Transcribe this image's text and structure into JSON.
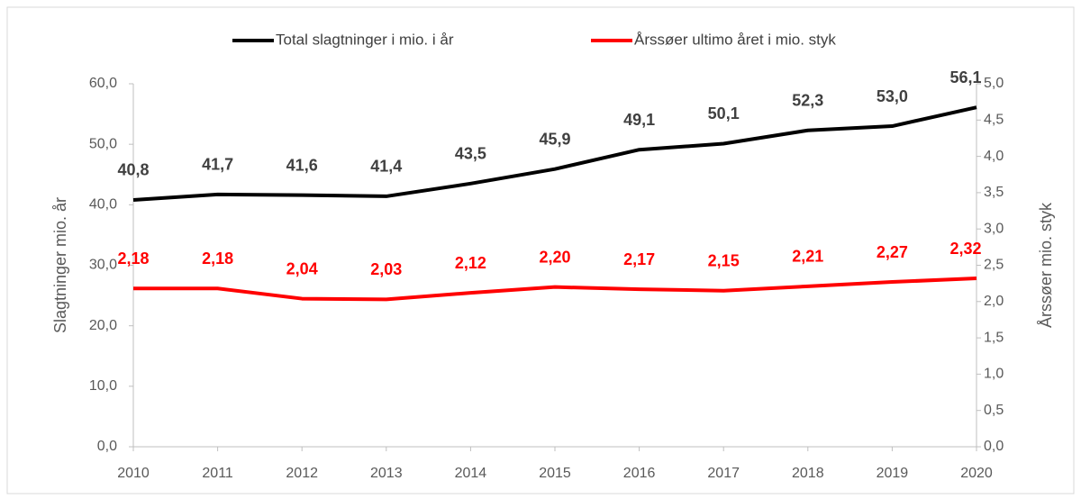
{
  "chart_data": {
    "type": "line",
    "categories": [
      "2010",
      "2011",
      "2012",
      "2013",
      "2014",
      "2015",
      "2016",
      "2017",
      "2018",
      "2019",
      "2020"
    ],
    "series": [
      {
        "name": "Total slagtninger i mio. i år",
        "color": "#000000",
        "values": [
          40.8,
          41.7,
          41.6,
          41.4,
          43.5,
          45.9,
          49.1,
          50.1,
          52.3,
          53.0,
          56.1
        ],
        "value_labels": [
          "40,8",
          "41,7",
          "41,6",
          "41,4",
          "43,5",
          "45,9",
          "49,1",
          "50,1",
          "52,3",
          "53,0",
          "56,1"
        ]
      },
      {
        "name": "Årssøer ultimo året i mio. styk",
        "color": "#ff0000",
        "axis": "y2",
        "values": [
          2.18,
          2.18,
          2.04,
          2.03,
          2.12,
          2.2,
          2.17,
          2.15,
          2.21,
          2.27,
          2.32
        ],
        "value_labels": [
          "2,18",
          "2,18",
          "2,04",
          "2,03",
          "2,12",
          "2,20",
          "2,17",
          "2,15",
          "2,21",
          "2,27",
          "2,32"
        ]
      }
    ],
    "ylabel": "Slagtninger mio. år",
    "y2label": "Årssøer mio. styk",
    "ylim": [
      0,
      60
    ],
    "yticks": [
      {
        "value": 0,
        "label": "0,0"
      },
      {
        "value": 10,
        "label": "10,0"
      },
      {
        "value": 20,
        "label": "20,0"
      },
      {
        "value": 30,
        "label": "30,0"
      },
      {
        "value": 40,
        "label": "40,0"
      },
      {
        "value": 50,
        "label": "50,0"
      },
      {
        "value": 60,
        "label": "60,0"
      }
    ],
    "y2lim": [
      0,
      5
    ],
    "y2ticks": [
      {
        "value": 0,
        "label": "0,0"
      },
      {
        "value": 0.5,
        "label": "0,5"
      },
      {
        "value": 1,
        "label": "1,0"
      },
      {
        "value": 1.5,
        "label": "1,5"
      },
      {
        "value": 2,
        "label": "2,0"
      },
      {
        "value": 2.5,
        "label": "2,5"
      },
      {
        "value": 3,
        "label": "3,0"
      },
      {
        "value": 3.5,
        "label": "3,5"
      },
      {
        "value": 4,
        "label": "4,0"
      },
      {
        "value": 4.5,
        "label": "4,5"
      },
      {
        "value": 5,
        "label": "5,0"
      }
    ],
    "legend": "top",
    "grid": false
  }
}
